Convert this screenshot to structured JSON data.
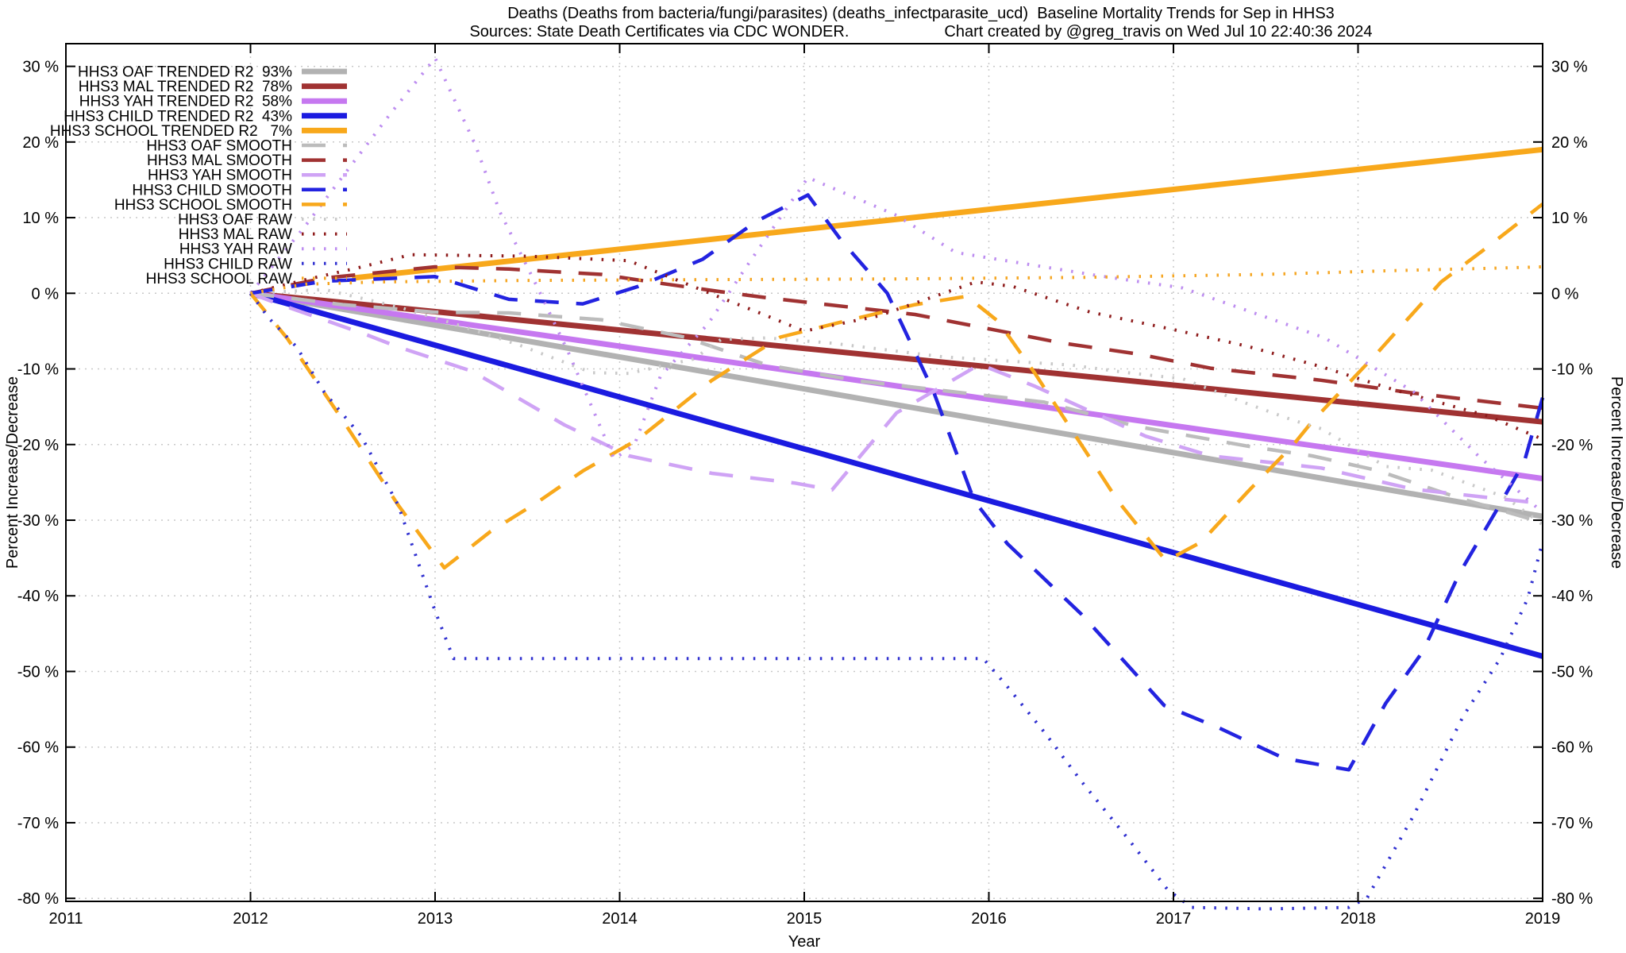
{
  "chart_data": {
    "type": "line",
    "title": "Deaths (Deaths from bacteria/fungi/parasites) (deaths_infectparasite_ucd)  Baseline Mortality Trends for Sep in HHS3",
    "subtitle_left": "Sources: State Death Certificates via CDC WONDER.",
    "subtitle_right": "Chart created by @greg_travis on Wed Jul 10 22:40:36 2024",
    "xlabel": "Year",
    "ylabel_left": "Percent Increase/Decrease",
    "ylabel_right": "Percent Increase/Decrease",
    "xlim": [
      2011,
      2019
    ],
    "ylim": [
      -80.4,
      33
    ],
    "grid": true,
    "legend_position": "top-left",
    "x_ticks": [
      2011,
      2012,
      2013,
      2014,
      2015,
      2016,
      2017,
      2018,
      2019
    ],
    "y_ticks": [
      30,
      20,
      10,
      0,
      -10,
      -20,
      -30,
      -40,
      -50,
      -60,
      -70,
      -80
    ],
    "y_tick_suffix": " %",
    "series": [
      {
        "id": "hhs3-oaf-trended",
        "label": "HHS3 OAF TRENDED R2  93%",
        "color": "#b2b2b2",
        "style": "trend",
        "points": [
          [
            2012,
            0
          ],
          [
            2019,
            -29.5
          ]
        ]
      },
      {
        "id": "hhs3-mal-trended",
        "label": "HHS3 MAL TRENDED R2  78%",
        "color": "#a03232",
        "style": "trend",
        "points": [
          [
            2012,
            0
          ],
          [
            2019,
            -17
          ]
        ]
      },
      {
        "id": "hhs3-yah-trended",
        "label": "HHS3 YAH TRENDED R2  58%",
        "color": "#c678f0",
        "style": "trend",
        "points": [
          [
            2012,
            0
          ],
          [
            2019,
            -24.5
          ]
        ]
      },
      {
        "id": "hhs3-child-trended",
        "label": "HHS3 CHILD TRENDED R2  43%",
        "color": "#1b1be0",
        "style": "trend",
        "points": [
          [
            2012,
            0
          ],
          [
            2019,
            -48
          ]
        ]
      },
      {
        "id": "hhs3-school-trended",
        "label": "HHS3 SCHOOL TRENDED R2   7%",
        "color": "#f8a81b",
        "style": "trend",
        "points": [
          [
            2012.55,
            2
          ],
          [
            2019,
            19
          ]
        ]
      },
      {
        "id": "hhs3-oaf-smooth",
        "label": "HHS3 OAF SMOOTH",
        "color": "#bcbcbc",
        "style": "smooth",
        "points": [
          [
            2012,
            0
          ],
          [
            2012.5,
            -1.5
          ],
          [
            2013,
            -2.5
          ],
          [
            2013.4,
            -2.6
          ],
          [
            2013.9,
            -3.5
          ],
          [
            2014.35,
            -5.8
          ],
          [
            2014.8,
            -9.5
          ],
          [
            2015.3,
            -11.6
          ],
          [
            2015.8,
            -13
          ],
          [
            2016.3,
            -14.4
          ],
          [
            2016.8,
            -17.6
          ],
          [
            2017.4,
            -20.2
          ],
          [
            2017.75,
            -21.5
          ],
          [
            2018.1,
            -23.4
          ],
          [
            2018.55,
            -27.1
          ],
          [
            2019,
            -30.3
          ]
        ]
      },
      {
        "id": "hhs3-mal-smooth",
        "label": "HHS3 MAL SMOOTH",
        "color": "#a03232",
        "style": "smooth",
        "points": [
          [
            2012,
            0
          ],
          [
            2012.4,
            2
          ],
          [
            2013,
            3.5
          ],
          [
            2013.4,
            3.2
          ],
          [
            2013.9,
            2.5
          ],
          [
            2014.2,
            1.4
          ],
          [
            2014.55,
            0.2
          ],
          [
            2014.8,
            -0.6
          ],
          [
            2015.6,
            -2.8
          ],
          [
            2016.4,
            -6.6
          ],
          [
            2016.8,
            -8
          ],
          [
            2017.2,
            -9.9
          ],
          [
            2017.8,
            -11.5
          ],
          [
            2018.3,
            -13.2
          ],
          [
            2019,
            -15.2
          ]
        ]
      },
      {
        "id": "hhs3-yah-smooth",
        "label": "HHS3 YAH SMOOTH",
        "color": "#cfa3f5",
        "style": "smooth",
        "points": [
          [
            2012,
            0
          ],
          [
            2012.15,
            -1.4
          ],
          [
            2012.62,
            -5.4
          ],
          [
            2012.8,
            -7.1
          ],
          [
            2013.2,
            -10.3
          ],
          [
            2013.7,
            -17.4
          ],
          [
            2014.05,
            -21.5
          ],
          [
            2014.5,
            -23.8
          ],
          [
            2014.95,
            -25.1
          ],
          [
            2015.15,
            -26
          ],
          [
            2015.5,
            -15.8
          ],
          [
            2015.95,
            -9.4
          ],
          [
            2016.25,
            -12.3
          ],
          [
            2016.85,
            -18.9
          ],
          [
            2017.2,
            -21.5
          ],
          [
            2017.8,
            -23.1
          ],
          [
            2018.3,
            -25.9
          ],
          [
            2018.7,
            -27
          ],
          [
            2019,
            -27.8
          ]
        ]
      },
      {
        "id": "hhs3-child-smooth",
        "label": "HHS3 CHILD SMOOTH",
        "color": "#2323e0",
        "style": "smooth",
        "points": [
          [
            2012,
            0
          ],
          [
            2012.4,
            1.6
          ],
          [
            2013,
            2.2
          ],
          [
            2013.4,
            -0.8
          ],
          [
            2013.8,
            -1.4
          ],
          [
            2014.1,
            0.9
          ],
          [
            2014.45,
            4.5
          ],
          [
            2014.74,
            9.5
          ],
          [
            2015.02,
            13
          ],
          [
            2015.2,
            7
          ],
          [
            2015.45,
            0
          ],
          [
            2015.7,
            -13
          ],
          [
            2015.92,
            -27.4
          ],
          [
            2016.1,
            -33.1
          ],
          [
            2016.5,
            -42.4
          ],
          [
            2016.95,
            -54.5
          ],
          [
            2017.25,
            -57.5
          ],
          [
            2017.6,
            -61.5
          ],
          [
            2017.95,
            -63
          ],
          [
            2018.15,
            -54.2
          ],
          [
            2018.35,
            -47.4
          ],
          [
            2018.55,
            -37
          ],
          [
            2018.75,
            -28.7
          ],
          [
            2018.9,
            -22.3
          ],
          [
            2019,
            -13.8
          ]
        ]
      },
      {
        "id": "hhs3-school-smooth",
        "label": "HHS3 SCHOOL SMOOTH",
        "color": "#f8a81b",
        "style": "smooth",
        "points": [
          [
            2012,
            0
          ],
          [
            2012.2,
            -6
          ],
          [
            2012.5,
            -16.8
          ],
          [
            2012.8,
            -28
          ],
          [
            2013.05,
            -36.3
          ],
          [
            2013.3,
            -31.5
          ],
          [
            2013.55,
            -27.7
          ],
          [
            2013.8,
            -23.5
          ],
          [
            2014.1,
            -19.3
          ],
          [
            2014.5,
            -11.5
          ],
          [
            2014.87,
            -5.8
          ],
          [
            2015.25,
            -3.5
          ],
          [
            2015.6,
            -1.5
          ],
          [
            2015.88,
            -0.4
          ],
          [
            2016.05,
            -3.7
          ],
          [
            2016.25,
            -10.6
          ],
          [
            2016.45,
            -18.1
          ],
          [
            2016.7,
            -27.5
          ],
          [
            2016.96,
            -35.4
          ],
          [
            2017.15,
            -32.9
          ],
          [
            2017.4,
            -26.3
          ],
          [
            2017.65,
            -20
          ],
          [
            2017.75,
            -17
          ],
          [
            2018.1,
            -8
          ],
          [
            2018.45,
            1.5
          ],
          [
            2018.7,
            6.1
          ],
          [
            2019,
            11.8
          ]
        ]
      },
      {
        "id": "hhs3-oaf-raw",
        "label": "HHS3 OAF RAW",
        "color": "#c9c9c9",
        "style": "raw",
        "points": [
          [
            2012,
            0
          ],
          [
            2012.4,
            0.5
          ],
          [
            2012.8,
            -1.8
          ],
          [
            2013.1,
            -4
          ],
          [
            2013.45,
            -6.8
          ],
          [
            2013.85,
            -10.5
          ],
          [
            2014.05,
            -10.6
          ],
          [
            2014.4,
            -8.7
          ],
          [
            2014.55,
            -6.1
          ],
          [
            2014.8,
            -5.9
          ],
          [
            2015.15,
            -6.6
          ],
          [
            2015.75,
            -8.4
          ],
          [
            2016.45,
            -9.5
          ],
          [
            2016.75,
            -10.5
          ],
          [
            2017.05,
            -11.3
          ],
          [
            2017.4,
            -14.6
          ],
          [
            2017.65,
            -16.8
          ],
          [
            2017.8,
            -17.9
          ],
          [
            2018.15,
            -22.9
          ],
          [
            2018.4,
            -23.4
          ],
          [
            2018.8,
            -27
          ],
          [
            2019,
            -30.6
          ]
        ]
      },
      {
        "id": "hhs3-mal-raw",
        "label": "HHS3 MAL RAW",
        "color": "#8e1b1b",
        "style": "raw",
        "points": [
          [
            2012,
            0
          ],
          [
            2012.3,
            1.8
          ],
          [
            2012.57,
            3.3
          ],
          [
            2012.87,
            5.1
          ],
          [
            2013.5,
            4.9
          ],
          [
            2014.05,
            4.3
          ],
          [
            2014.55,
            -0.6
          ],
          [
            2014.78,
            -2.8
          ],
          [
            2015,
            -5
          ],
          [
            2015.4,
            -3
          ],
          [
            2015.93,
            1.5
          ],
          [
            2016.13,
            0.9
          ],
          [
            2016.55,
            -2.5
          ],
          [
            2017,
            -4.8
          ],
          [
            2017.4,
            -7
          ],
          [
            2017.8,
            -9.7
          ],
          [
            2018.2,
            -12.8
          ],
          [
            2018.7,
            -16.2
          ],
          [
            2019,
            -19.3
          ]
        ]
      },
      {
        "id": "hhs3-yah-raw",
        "label": "HHS3 YAH RAW",
        "color": "#bd8df0",
        "style": "raw",
        "points": [
          [
            2012,
            0
          ],
          [
            2012.3,
            9
          ],
          [
            2012.57,
            17.7
          ],
          [
            2012.76,
            23.8
          ],
          [
            2013,
            31.1
          ],
          [
            2013.22,
            19.5
          ],
          [
            2013.35,
            10.8
          ],
          [
            2013.55,
            1
          ],
          [
            2013.72,
            -7.7
          ],
          [
            2013.97,
            -21.9
          ],
          [
            2014.08,
            -20
          ],
          [
            2014.22,
            -11
          ],
          [
            2014.48,
            -4
          ],
          [
            2014.7,
            4
          ],
          [
            2015.02,
            15.3
          ],
          [
            2015.5,
            10.3
          ],
          [
            2015.82,
            5.4
          ],
          [
            2016.22,
            3.8
          ],
          [
            2016.6,
            2.3
          ],
          [
            2017.05,
            0.7
          ],
          [
            2017.6,
            -4
          ],
          [
            2017.82,
            -5.9
          ],
          [
            2018.3,
            -13
          ],
          [
            2018.66,
            -21.7
          ],
          [
            2018.75,
            -23.6
          ],
          [
            2019,
            -29
          ]
        ]
      },
      {
        "id": "hhs3-child-raw",
        "label": "HHS3 CHILD RAW",
        "color": "#3030d0",
        "style": "raw",
        "points": [
          [
            2012,
            0
          ],
          [
            2012.1,
            -3.3
          ],
          [
            2012.25,
            -7.1
          ],
          [
            2012.4,
            -13.1
          ],
          [
            2012.6,
            -18.9
          ],
          [
            2012.8,
            -28
          ],
          [
            2013,
            -42
          ],
          [
            2013.1,
            -48.3
          ],
          [
            2014,
            -48.3
          ],
          [
            2015,
            -48.3
          ],
          [
            2015.97,
            -48.3
          ],
          [
            2016.1,
            -52
          ],
          [
            2016.3,
            -58
          ],
          [
            2016.5,
            -64.5
          ],
          [
            2016.75,
            -72
          ],
          [
            2016.97,
            -78.9
          ],
          [
            2017.1,
            -81.2
          ],
          [
            2017.5,
            -81.4
          ],
          [
            2017.95,
            -81.2
          ],
          [
            2018.05,
            -79.9
          ],
          [
            2018.3,
            -69.1
          ],
          [
            2018.57,
            -55.9
          ],
          [
            2018.77,
            -48.3
          ],
          [
            2018.92,
            -40.3
          ],
          [
            2019,
            -32.8
          ]
        ]
      },
      {
        "id": "hhs3-school-raw",
        "label": "HHS3 SCHOOL RAW",
        "color": "#f5a623",
        "style": "raw",
        "points": [
          [
            2012,
            0
          ],
          [
            2012.3,
            1.2
          ],
          [
            2012.7,
            1.5
          ],
          [
            2013.5,
            1.7
          ],
          [
            2014.5,
            1.8
          ],
          [
            2015.5,
            1.9
          ],
          [
            2016.5,
            2.1
          ],
          [
            2017.5,
            2.5
          ],
          [
            2018.2,
            3
          ],
          [
            2018.7,
            3.3
          ],
          [
            2019,
            3.5
          ]
        ]
      }
    ]
  }
}
